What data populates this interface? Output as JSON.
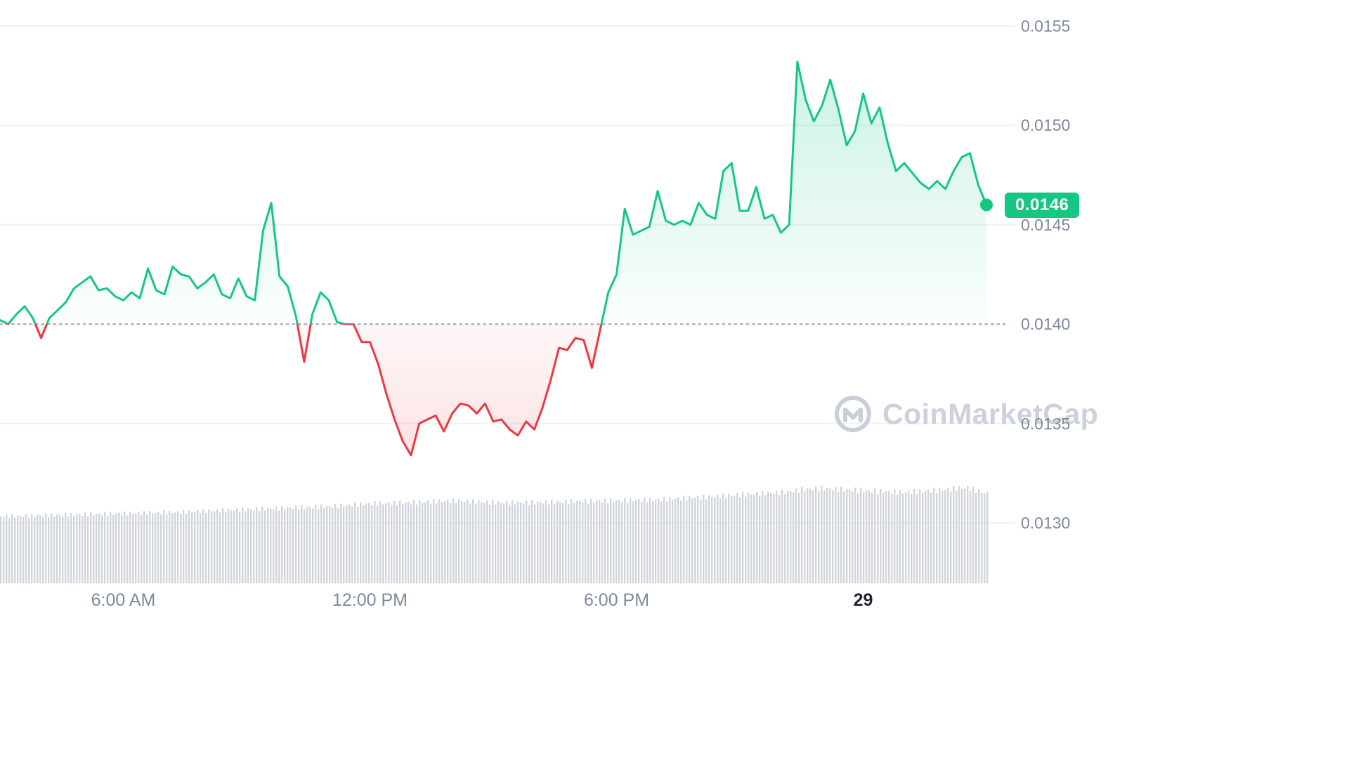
{
  "current_price": {
    "label": "0.0146",
    "value": 0.0146
  },
  "watermark": {
    "brand": "CoinMarketCap"
  },
  "colors": {
    "up": "#16c784",
    "down": "#ea3943",
    "fill_up": "#16c784",
    "fill_down": "#ea3943",
    "axis_label": "#808a9d",
    "axis_label_emphasis": "#222531",
    "grid": "#eef1f6",
    "baseline_dots": "#aab3c2",
    "volume_bar": "#d0d5dc",
    "badge_text": "#ffffff",
    "watermark": "#ccd1db"
  },
  "chart_data": {
    "type": "line",
    "title": "",
    "x_unit": "hour_of_day_decimal_starting_3AM",
    "baseline": 0.014,
    "last_price": 0.0146,
    "ylim": [
      0.013,
      0.0155
    ],
    "xlim": [
      3.0,
      27.0
    ],
    "grid": "horizontal",
    "legend": "none",
    "y_ticks": [
      {
        "value": 0.0155,
        "label": "0.0155"
      },
      {
        "value": 0.015,
        "label": "0.0150"
      },
      {
        "value": 0.0145,
        "label": "0.0145"
      },
      {
        "value": 0.014,
        "label": "0.0140"
      },
      {
        "value": 0.0135,
        "label": "0.0135"
      },
      {
        "value": 0.013,
        "label": "0.0130"
      }
    ],
    "x_ticks": [
      {
        "t": 6,
        "label": "6:00 AM",
        "emphasis": false
      },
      {
        "t": 12,
        "label": "12:00 PM",
        "emphasis": false
      },
      {
        "t": 18,
        "label": "6:00 PM",
        "emphasis": false
      },
      {
        "t": 24,
        "label": "29",
        "emphasis": true
      }
    ],
    "x": [
      3.0,
      3.2,
      3.4,
      3.6,
      3.8,
      4.0,
      4.2,
      4.4,
      4.6,
      4.8,
      5.0,
      5.2,
      5.4,
      5.6,
      5.8,
      6.0,
      6.2,
      6.4,
      6.6,
      6.8,
      7.0,
      7.2,
      7.4,
      7.6,
      7.8,
      8.0,
      8.2,
      8.4,
      8.6,
      8.8,
      9.0,
      9.2,
      9.4,
      9.6,
      9.8,
      10.0,
      10.2,
      10.4,
      10.6,
      10.8,
      11.0,
      11.2,
      11.4,
      11.6,
      11.8,
      12.0,
      12.2,
      12.4,
      12.6,
      12.8,
      13.0,
      13.2,
      13.4,
      13.6,
      13.8,
      14.0,
      14.2,
      14.4,
      14.6,
      14.8,
      15.0,
      15.2,
      15.4,
      15.6,
      15.8,
      16.0,
      16.2,
      16.4,
      16.6,
      16.8,
      17.0,
      17.2,
      17.4,
      17.6,
      17.8,
      18.0,
      18.2,
      18.4,
      18.6,
      18.8,
      19.0,
      19.2,
      19.4,
      19.6,
      19.8,
      20.0,
      20.2,
      20.4,
      20.6,
      20.8,
      21.0,
      21.2,
      21.4,
      21.6,
      21.8,
      22.0,
      22.2,
      22.4,
      22.6,
      22.8,
      23.0,
      23.2,
      23.4,
      23.6,
      23.8,
      24.0,
      24.2,
      24.4,
      24.6,
      24.8,
      25.0,
      25.2,
      25.4,
      25.6,
      25.8,
      26.0,
      26.2,
      26.4,
      26.6,
      26.8,
      27.0
    ],
    "price": [
      0.01402,
      0.014,
      0.01405,
      0.01409,
      0.01403,
      0.01393,
      0.01403,
      0.01407,
      0.01411,
      0.01418,
      0.01421,
      0.01424,
      0.01417,
      0.01418,
      0.01414,
      0.01412,
      0.01416,
      0.01413,
      0.01428,
      0.01417,
      0.01415,
      0.01429,
      0.01425,
      0.01424,
      0.01418,
      0.01421,
      0.01425,
      0.01415,
      0.01413,
      0.01423,
      0.01414,
      0.01412,
      0.01447,
      0.01461,
      0.01424,
      0.01419,
      0.01404,
      0.01381,
      0.01405,
      0.01416,
      0.01412,
      0.01401,
      0.014,
      0.014,
      0.01391,
      0.01391,
      0.0138,
      0.01365,
      0.01352,
      0.01341,
      0.01334,
      0.0135,
      0.01352,
      0.01354,
      0.01346,
      0.01355,
      0.0136,
      0.01359,
      0.01355,
      0.0136,
      0.01351,
      0.01352,
      0.01347,
      0.01344,
      0.01351,
      0.01347,
      0.01358,
      0.01372,
      0.01388,
      0.01387,
      0.01393,
      0.01392,
      0.01378,
      0.01397,
      0.01416,
      0.01425,
      0.01458,
      0.01445,
      0.01447,
      0.01449,
      0.01467,
      0.01452,
      0.0145,
      0.01452,
      0.0145,
      0.01461,
      0.01455,
      0.01453,
      0.01477,
      0.01481,
      0.01457,
      0.01457,
      0.01469,
      0.01453,
      0.01455,
      0.01446,
      0.0145,
      0.01532,
      0.01513,
      0.01502,
      0.0151,
      0.01523,
      0.01508,
      0.0149,
      0.01497,
      0.01516,
      0.01501,
      0.01509,
      0.01491,
      0.01477,
      0.01481,
      0.01476,
      0.01471,
      0.01468,
      0.01472,
      0.01468,
      0.01477,
      0.01484,
      0.01486,
      0.0147,
      0.0146
    ],
    "volume": {
      "t": [
        3,
        5,
        7,
        9,
        11,
        12,
        13,
        14,
        15,
        16,
        17,
        18,
        19,
        20,
        21,
        22,
        22.5,
        23,
        24,
        25,
        26,
        26.5,
        27
      ],
      "rel": [
        0.67,
        0.69,
        0.71,
        0.74,
        0.77,
        0.8,
        0.81,
        0.83,
        0.81,
        0.81,
        0.82,
        0.83,
        0.84,
        0.86,
        0.89,
        0.91,
        0.94,
        0.95,
        0.93,
        0.91,
        0.94,
        0.96,
        0.9
      ]
    }
  }
}
